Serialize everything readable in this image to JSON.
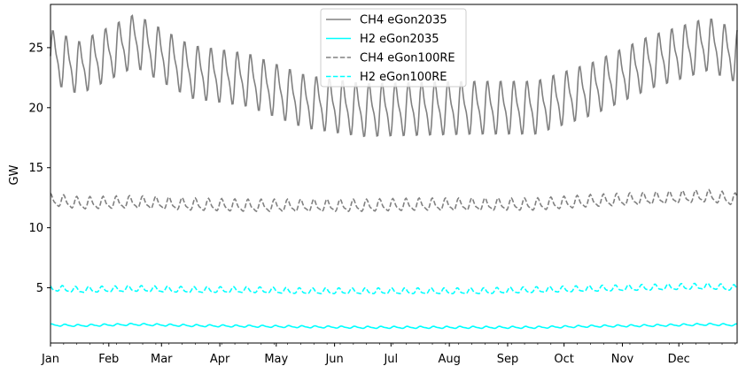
{
  "chart_data": {
    "type": "line",
    "title": "",
    "xlabel": "",
    "ylabel": "GW",
    "x_unit": "day of year",
    "xlim": [
      0,
      365
    ],
    "ylim": [
      0.4,
      28.6
    ],
    "yticks": [
      5,
      10,
      15,
      20,
      25
    ],
    "ytick_labels": [
      "5",
      "10",
      "15",
      "20",
      "25"
    ],
    "xticks": [
      {
        "label": "Jan",
        "day": 0
      },
      {
        "label": "Feb",
        "day": 31
      },
      {
        "label": "Mar",
        "day": 59
      },
      {
        "label": "Apr",
        "day": 90
      },
      {
        "label": "May",
        "day": 120
      },
      {
        "label": "Jun",
        "day": 151
      },
      {
        "label": "Jul",
        "day": 181
      },
      {
        "label": "Aug",
        "day": 212
      },
      {
        "label": "Sep",
        "day": 243
      },
      {
        "label": "Oct",
        "day": 273
      },
      {
        "label": "Nov",
        "day": 304
      },
      {
        "label": "Dec",
        "day": 334
      }
    ],
    "grid": false,
    "legend_position": "top-center",
    "weekly_cycle_days": 7,
    "series": [
      {
        "name": "CH4 eGon2035",
        "color": "#808080",
        "dash": "solid",
        "monthly_mean": [
          23.3,
          25.6,
          23.0,
          22.3,
          20.5,
          19.8,
          19.9,
          20.0,
          20.0,
          21.6,
          23.8,
          25.3
        ],
        "weekly_amplitude": 2.6
      },
      {
        "name": "H2 eGon2035",
        "color": "#00ffff",
        "dash": "solid",
        "monthly_mean": [
          1.85,
          1.95,
          1.85,
          1.8,
          1.75,
          1.7,
          1.7,
          1.7,
          1.7,
          1.8,
          1.85,
          1.95
        ],
        "weekly_amplitude": 0.1
      },
      {
        "name": "CH4 eGon100RE",
        "color": "#808080",
        "dash": "dashed",
        "monthly_mean": [
          12.0,
          12.1,
          11.9,
          11.8,
          11.8,
          11.8,
          11.9,
          11.9,
          11.9,
          12.2,
          12.4,
          12.6
        ],
        "weekly_amplitude": 0.6
      },
      {
        "name": "H2 eGon100RE",
        "color": "#00ffff",
        "dash": "dashed",
        "monthly_mean": [
          4.8,
          4.9,
          4.8,
          4.8,
          4.7,
          4.7,
          4.7,
          4.7,
          4.8,
          4.9,
          5.0,
          5.1
        ],
        "weekly_amplitude": 0.3
      }
    ]
  }
}
